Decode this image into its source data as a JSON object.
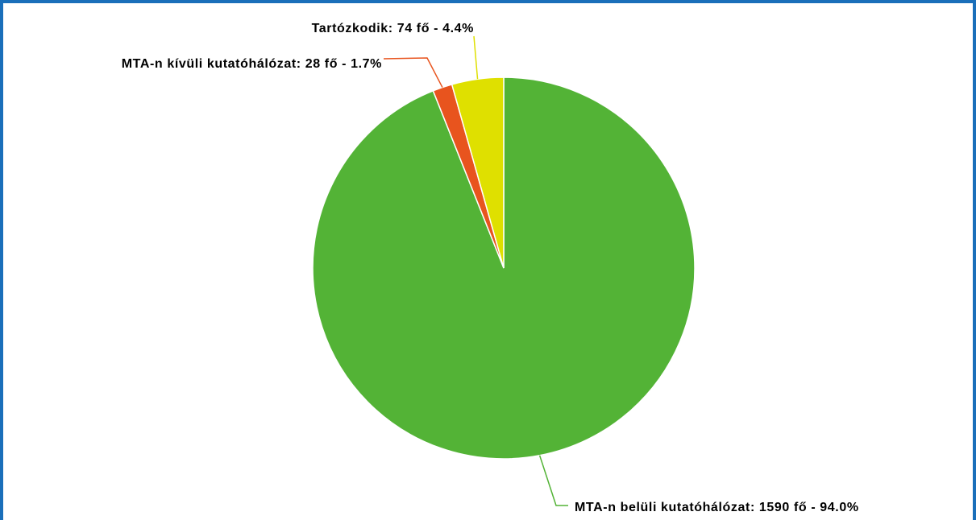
{
  "chart_data": {
    "type": "pie",
    "labels": [
      "MTA-n belüli kutatóhálózat: 1590 fő - 94.0%",
      "MTA-n kívüli kutatóhálózat: 28 fő - 1.7%",
      "Tartózkodik: 74 fő - 4.4%"
    ],
    "values": [
      1590,
      28,
      74
    ],
    "colors": [
      "#53b336",
      "#e8541e",
      "#dfe000"
    ]
  }
}
